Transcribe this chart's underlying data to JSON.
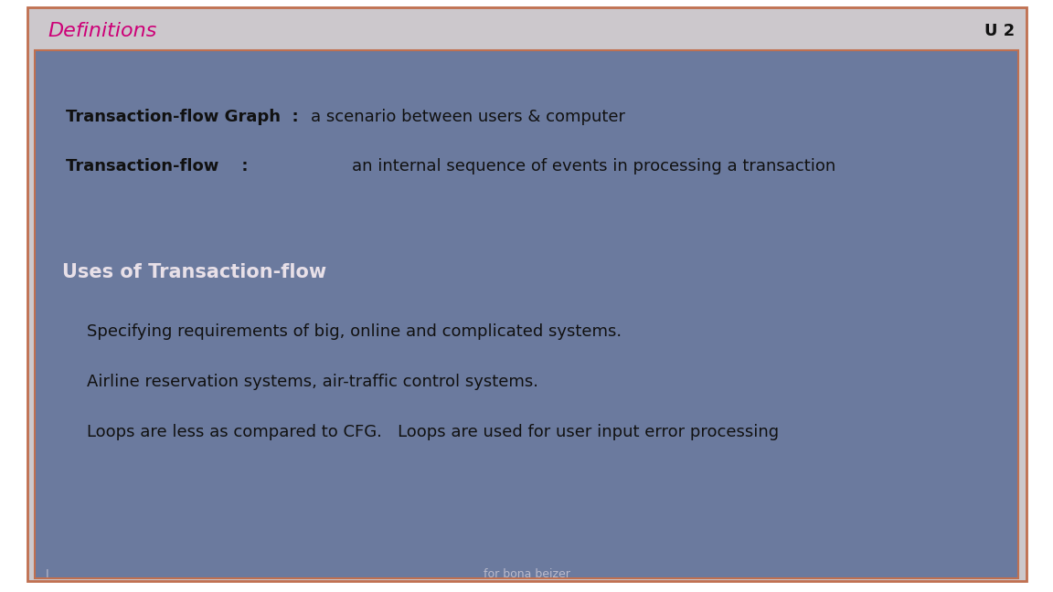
{
  "title": "Definitions",
  "title_color": "#cc0077",
  "slide_id": "U 2",
  "slide_id_color": "#111111",
  "header_bg": "#ccc8cc",
  "header_border": "#c07050",
  "content_bg": "#6b7a9e",
  "outer_bg": "#ffffff",
  "line1_label": "Transaction-flow Graph  :",
  "line1_text": "a scenario between users & computer",
  "line2_label": "Transaction-flow    :",
  "line2_text": "an internal sequence of events in processing a transaction",
  "section_title": "Uses of Transaction-flow",
  "bullet1": "Specifying requirements of big, online and complicated systems.",
  "bullet2": "Airline reservation systems, air-traffic control systems.",
  "bullet3": "Loops are less as compared to CFG.   Loops are used for user input error processing",
  "footer_left": "I",
  "footer_center": "for bona beizer",
  "label_color": "#111111",
  "text_color": "#111111",
  "section_color": "#e8e0e8",
  "bullet_color": "#111111",
  "footer_color": "#bbbbcc"
}
